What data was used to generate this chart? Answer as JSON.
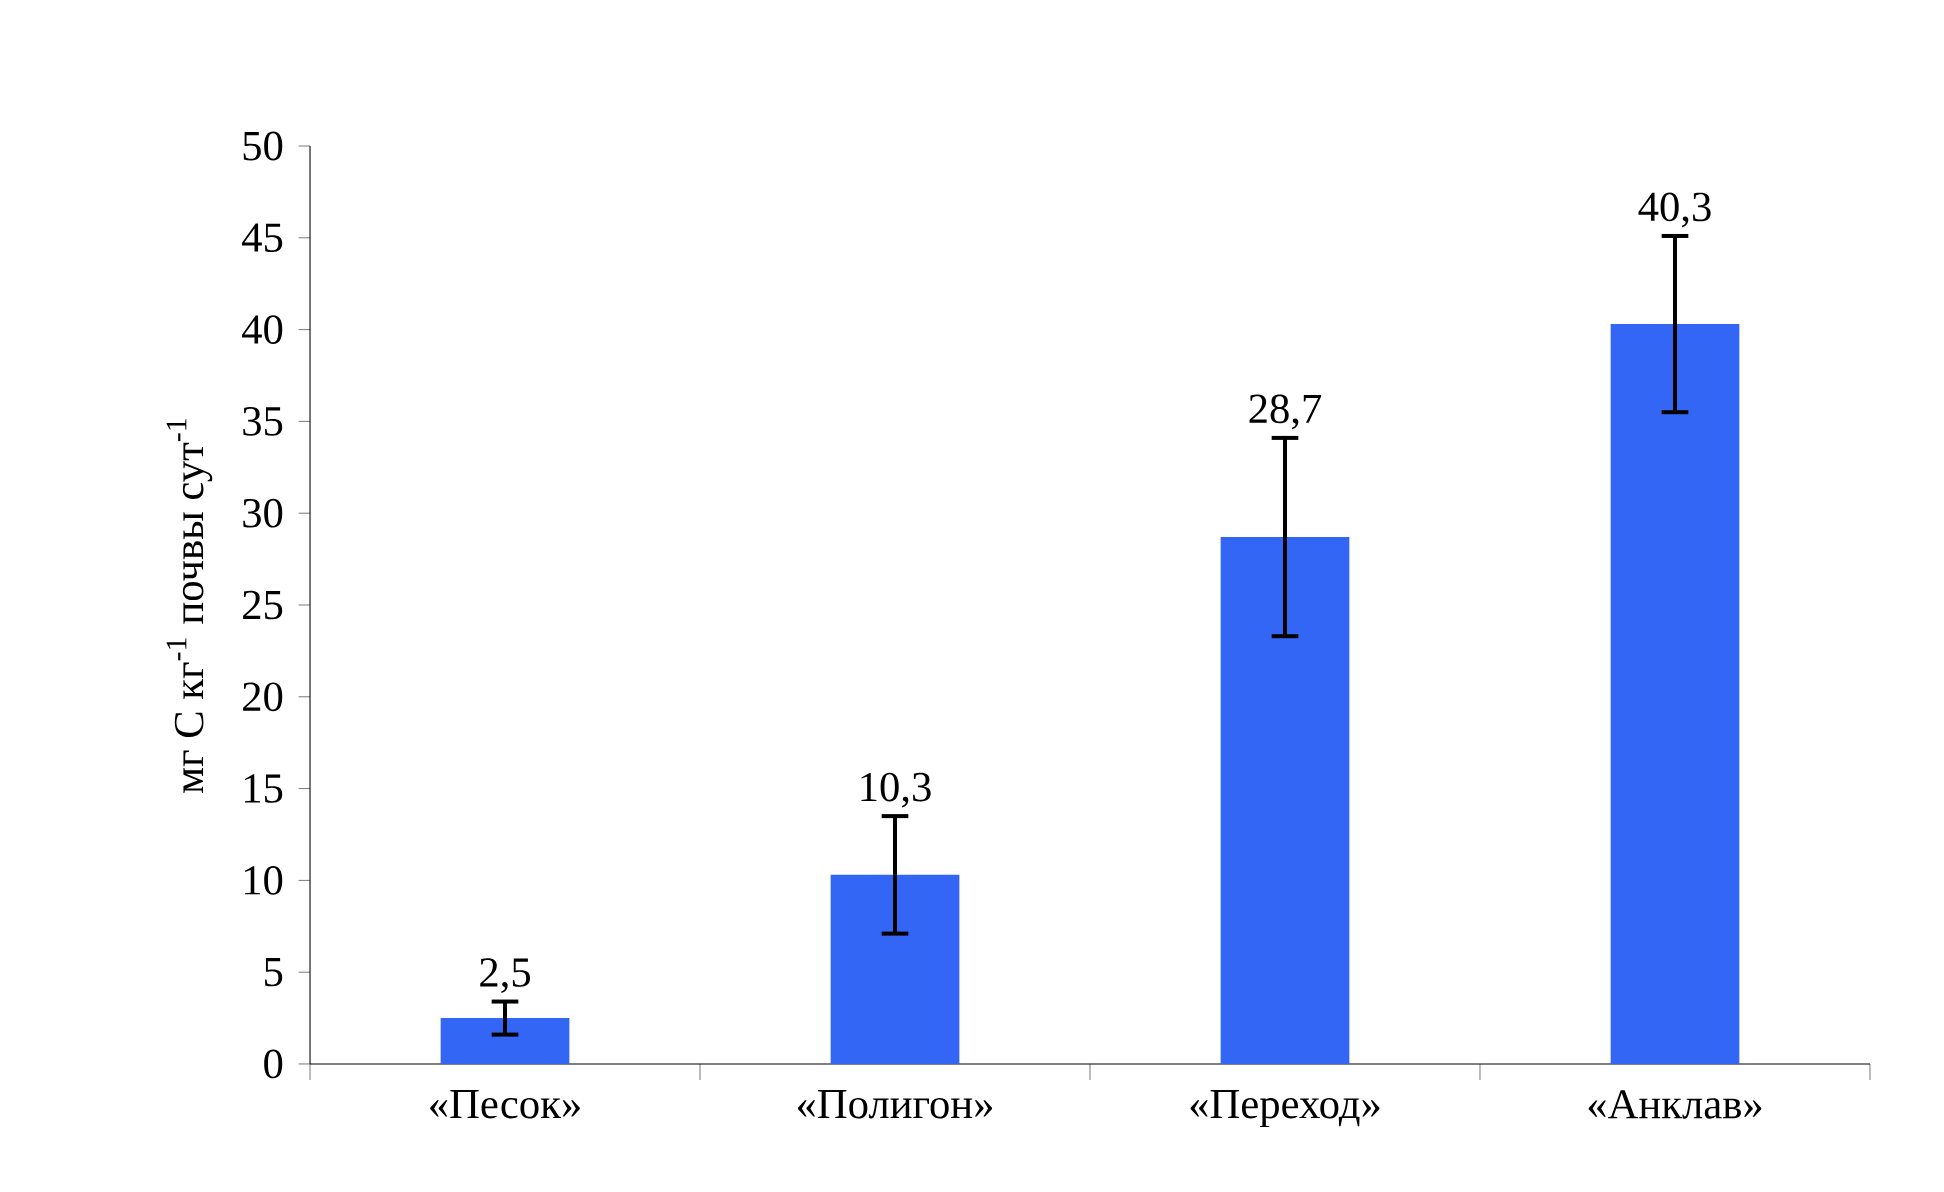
{
  "chart_data": {
    "type": "bar",
    "ylabel": "мг С кг$^{-1}$ почвы сут$^{-1}$",
    "categories": [
      "«Песок»",
      "«Полигон»",
      "«Переход»",
      "«Анклав»"
    ],
    "values": [
      2.5,
      10.3,
      28.7,
      40.3
    ],
    "errors": [
      0.9,
      3.2,
      5.4,
      4.8
    ],
    "value_labels": [
      "2,5",
      "10,3",
      "28,7",
      "40,3"
    ],
    "color": "#3366f5",
    "ylim": [
      0,
      50
    ],
    "yticks": [
      0,
      5,
      10,
      15,
      20,
      25,
      30,
      35,
      40,
      45,
      50
    ]
  }
}
